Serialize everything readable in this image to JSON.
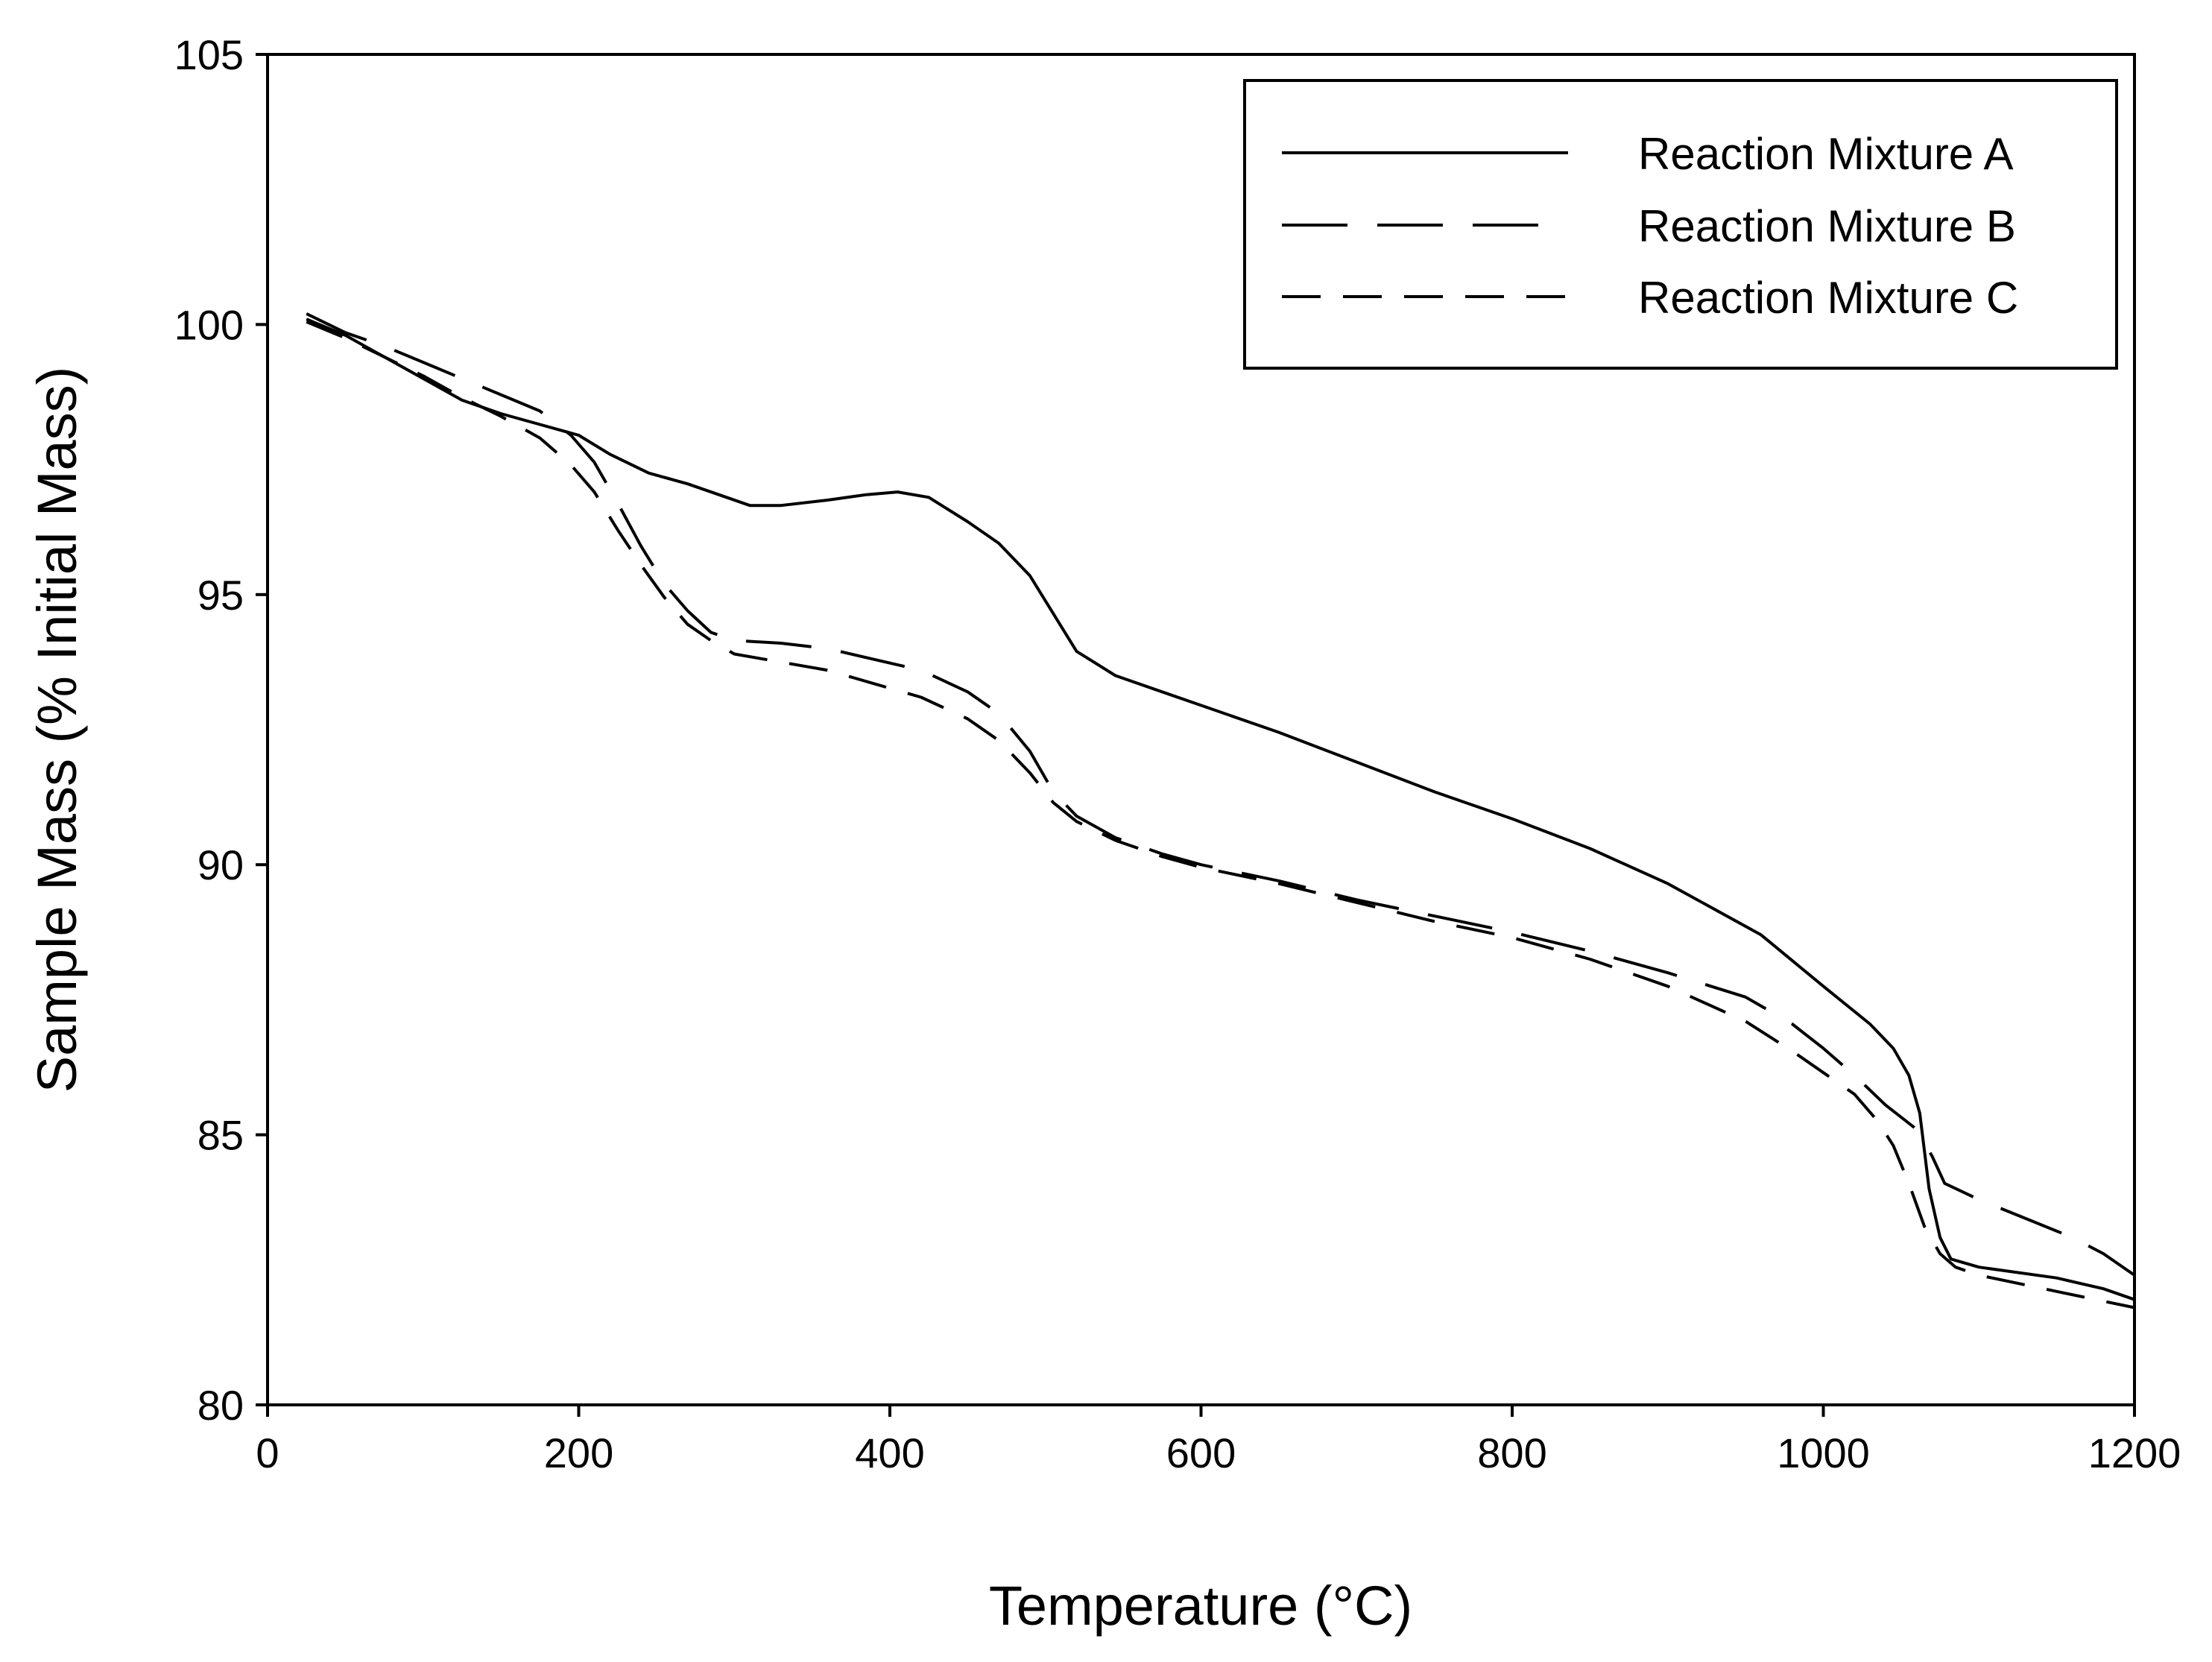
{
  "chart_data": {
    "type": "line",
    "title": "",
    "xlabel": "Temperature (°C)",
    "ylabel": "Sample Mass (% Initial Mass)",
    "xlim": [
      0,
      1200
    ],
    "ylim": [
      80,
      105
    ],
    "xticks": [
      0,
      200,
      400,
      600,
      800,
      1000,
      1200
    ],
    "yticks": [
      80,
      85,
      90,
      95,
      100,
      105
    ],
    "xtick_labels": [
      "0",
      "200",
      "400",
      "600",
      "800",
      "1000",
      "1200"
    ],
    "ytick_labels": [
      "80",
      "85",
      "90",
      "95",
      "100",
      "105"
    ],
    "grid": false,
    "legend": "top-right",
    "series": [
      {
        "name": "Reaction Mixture A",
        "dash": "solid",
        "points": [
          [
            25,
            100.1
          ],
          [
            50,
            99.8
          ],
          [
            75,
            99.4
          ],
          [
            100,
            99.0
          ],
          [
            125,
            98.6
          ],
          [
            150,
            98.35
          ],
          [
            175,
            98.15
          ],
          [
            200,
            97.95
          ],
          [
            220,
            97.6
          ],
          [
            245,
            97.25
          ],
          [
            270,
            97.05
          ],
          [
            290,
            96.85
          ],
          [
            310,
            96.65
          ],
          [
            330,
            96.65
          ],
          [
            360,
            96.75
          ],
          [
            385,
            96.85
          ],
          [
            405,
            96.9
          ],
          [
            425,
            96.8
          ],
          [
            450,
            96.35
          ],
          [
            470,
            95.95
          ],
          [
            490,
            95.35
          ],
          [
            505,
            94.65
          ],
          [
            520,
            93.95
          ],
          [
            545,
            93.5
          ],
          [
            575,
            93.2
          ],
          [
            600,
            92.95
          ],
          [
            650,
            92.45
          ],
          [
            700,
            91.9
          ],
          [
            750,
            91.35
          ],
          [
            800,
            90.85
          ],
          [
            850,
            90.3
          ],
          [
            900,
            89.65
          ],
          [
            960,
            88.7
          ],
          [
            1000,
            87.75
          ],
          [
            1030,
            87.05
          ],
          [
            1045,
            86.6
          ],
          [
            1055,
            86.1
          ],
          [
            1062,
            85.4
          ],
          [
            1068,
            84.0
          ],
          [
            1075,
            83.1
          ],
          [
            1082,
            82.7
          ],
          [
            1100,
            82.55
          ],
          [
            1150,
            82.35
          ],
          [
            1180,
            82.15
          ],
          [
            1200,
            81.95
          ]
        ]
      },
      {
        "name": "Reaction Mixture B",
        "dash": "long",
        "points": [
          [
            25,
            100.2
          ],
          [
            50,
            99.85
          ],
          [
            75,
            99.6
          ],
          [
            100,
            99.3
          ],
          [
            125,
            99.0
          ],
          [
            150,
            98.7
          ],
          [
            175,
            98.4
          ],
          [
            195,
            97.95
          ],
          [
            210,
            97.45
          ],
          [
            225,
            96.7
          ],
          [
            240,
            95.9
          ],
          [
            255,
            95.2
          ],
          [
            270,
            94.7
          ],
          [
            285,
            94.3
          ],
          [
            300,
            94.15
          ],
          [
            330,
            94.1
          ],
          [
            360,
            94.0
          ],
          [
            390,
            93.8
          ],
          [
            420,
            93.6
          ],
          [
            450,
            93.2
          ],
          [
            470,
            92.8
          ],
          [
            490,
            92.1
          ],
          [
            505,
            91.35
          ],
          [
            520,
            90.9
          ],
          [
            545,
            90.5
          ],
          [
            575,
            90.2
          ],
          [
            600,
            90.0
          ],
          [
            650,
            89.7
          ],
          [
            700,
            89.35
          ],
          [
            750,
            89.05
          ],
          [
            800,
            88.75
          ],
          [
            850,
            88.4
          ],
          [
            900,
            88.0
          ],
          [
            950,
            87.55
          ],
          [
            980,
            87.05
          ],
          [
            1000,
            86.6
          ],
          [
            1020,
            86.1
          ],
          [
            1040,
            85.55
          ],
          [
            1060,
            85.1
          ],
          [
            1070,
            84.6
          ],
          [
            1078,
            84.1
          ],
          [
            1100,
            83.8
          ],
          [
            1130,
            83.45
          ],
          [
            1160,
            83.1
          ],
          [
            1180,
            82.8
          ],
          [
            1200,
            82.4
          ]
        ]
      },
      {
        "name": "Reaction Mixture C",
        "dash": "medium",
        "points": [
          [
            25,
            100.05
          ],
          [
            50,
            99.75
          ],
          [
            75,
            99.4
          ],
          [
            100,
            99.05
          ],
          [
            125,
            98.65
          ],
          [
            150,
            98.3
          ],
          [
            175,
            97.9
          ],
          [
            195,
            97.4
          ],
          [
            210,
            96.9
          ],
          [
            225,
            96.2
          ],
          [
            240,
            95.55
          ],
          [
            255,
            94.95
          ],
          [
            270,
            94.45
          ],
          [
            285,
            94.15
          ],
          [
            300,
            93.9
          ],
          [
            330,
            93.75
          ],
          [
            360,
            93.6
          ],
          [
            390,
            93.35
          ],
          [
            420,
            93.1
          ],
          [
            450,
            92.7
          ],
          [
            470,
            92.3
          ],
          [
            490,
            91.7
          ],
          [
            505,
            91.15
          ],
          [
            520,
            90.8
          ],
          [
            545,
            90.45
          ],
          [
            575,
            90.15
          ],
          [
            600,
            89.95
          ],
          [
            650,
            89.65
          ],
          [
            700,
            89.3
          ],
          [
            750,
            88.95
          ],
          [
            800,
            88.65
          ],
          [
            850,
            88.25
          ],
          [
            900,
            87.75
          ],
          [
            950,
            87.1
          ],
          [
            980,
            86.55
          ],
          [
            1000,
            86.15
          ],
          [
            1020,
            85.75
          ],
          [
            1035,
            85.25
          ],
          [
            1045,
            84.8
          ],
          [
            1055,
            84.1
          ],
          [
            1065,
            83.3
          ],
          [
            1075,
            82.8
          ],
          [
            1085,
            82.55
          ],
          [
            1100,
            82.4
          ],
          [
            1150,
            82.1
          ],
          [
            1200,
            81.8
          ]
        ]
      }
    ]
  }
}
